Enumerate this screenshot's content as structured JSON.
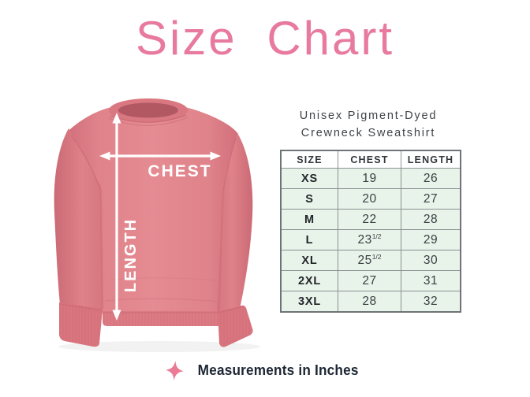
{
  "title": "Size Chart",
  "product": {
    "name_line1": "Unisex Pigment-Dyed",
    "name_line2": "Crewneck Sweatshirt"
  },
  "diagram": {
    "chest_label": "CHEST",
    "length_label": "LENGTH"
  },
  "footer": {
    "note": "Measurements in Inches",
    "icon": "sparkle-icon"
  },
  "colors": {
    "title_pink": "#e8799f",
    "sweatshirt_base": "#e0838b",
    "sweatshirt_shadow": "#c4636e",
    "table_row_bg": "#e8f3ea",
    "table_border": "#6e7377",
    "table_grid": "#8c9195",
    "heading_text": "#3f4449",
    "footer_text": "#1d2634",
    "sparkle_pink": "#ea7a95",
    "arrow_white": "#ffffff"
  },
  "chart_data": {
    "type": "table",
    "title": "Unisex Pigment-Dyed Crewneck Sweatshirt",
    "units": "inches",
    "columns": [
      "SIZE",
      "CHEST",
      "LENGTH"
    ],
    "rows": [
      {
        "size": "XS",
        "chest": "19",
        "length": "26"
      },
      {
        "size": "S",
        "chest": "20",
        "length": "27"
      },
      {
        "size": "M",
        "chest": "22",
        "length": "28"
      },
      {
        "size": "L",
        "chest": "23",
        "chest_fraction": "1/2",
        "length": "29"
      },
      {
        "size": "XL",
        "chest": "25",
        "chest_fraction": "1/2",
        "length": "30"
      },
      {
        "size": "2XL",
        "chest": "27",
        "length": "31"
      },
      {
        "size": "3XL",
        "chest": "28",
        "length": "32"
      }
    ]
  }
}
